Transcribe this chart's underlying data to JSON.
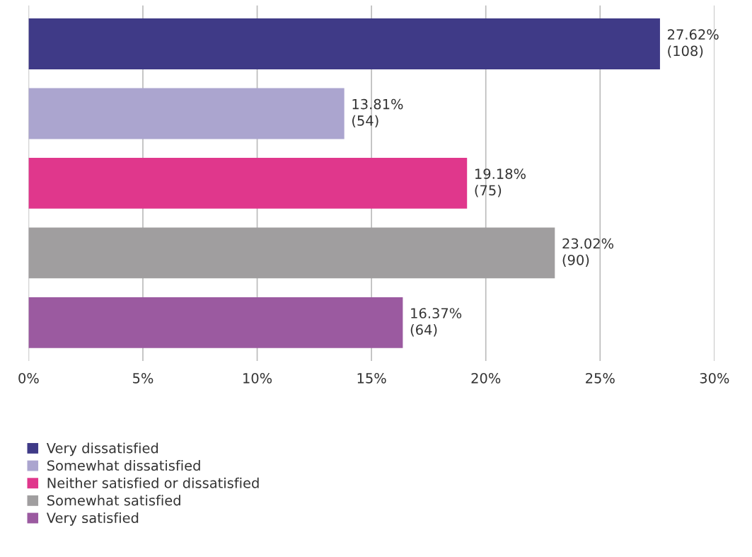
{
  "chart_data": {
    "type": "bar",
    "orientation": "horizontal",
    "categories": [
      null,
      null,
      null,
      null,
      null
    ],
    "series": [
      {
        "name": "Very dissatisfied",
        "color": "#3f3a87",
        "values": [
          27.62,
          null,
          null,
          null,
          null
        ],
        "value_labels": [
          "27.62%\n(108)",
          null,
          null,
          null,
          null
        ]
      },
      {
        "name": "Somewhat dissatisfied",
        "color": "#aba5cf",
        "values": [
          null,
          13.81,
          null,
          null,
          null
        ],
        "value_labels": [
          null,
          "13.81%\n(54)",
          null,
          null,
          null
        ]
      },
      {
        "name": "Neither satisfied or dissatisfied",
        "color": "#e0378c",
        "values": [
          null,
          null,
          19.18,
          null,
          null
        ],
        "value_labels": [
          null,
          null,
          "19.18%\n(75)",
          null,
          null
        ]
      },
      {
        "name": "Somewhat satisfied",
        "color": "#a09e9f",
        "values": [
          null,
          null,
          null,
          23.02,
          null
        ],
        "value_labels": [
          null,
          null,
          null,
          "23.02%\n(90)",
          null
        ]
      },
      {
        "name": "Very satisfied",
        "color": "#9b5aa0",
        "values": [
          null,
          null,
          null,
          null,
          16.37
        ],
        "value_labels": [
          null,
          null,
          null,
          null,
          "16.37%\n(64)"
        ]
      }
    ],
    "xlim": [
      0,
      30
    ],
    "xticks": [
      {
        "value": 0,
        "label": "0%"
      },
      {
        "value": 5,
        "label": "5%"
      },
      {
        "value": 10,
        "label": "10%"
      },
      {
        "value": 15,
        "label": "15%"
      },
      {
        "value": 20,
        "label": "20%"
      },
      {
        "value": 25,
        "label": "25%"
      },
      {
        "value": 30,
        "label": "30%"
      }
    ],
    "grid": "x",
    "legend": "bottom left",
    "tick_labels": "x"
  }
}
